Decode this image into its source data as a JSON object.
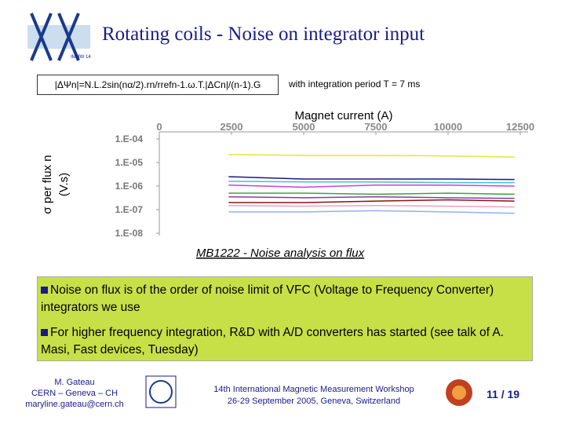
{
  "header": {
    "title": "Rotating coils - Noise on integrator input",
    "logo_text": "IMMW 14"
  },
  "formula": "|ΔΨn|=N.L.2sin(nα/2).rn/rrefn-1.ω.T.|ΔCn|/(n-1).G",
  "period_note": "with integration period T = 7 ms",
  "chart_data": {
    "type": "line",
    "xlabel": "Magnet current (A)",
    "ylabel": [
      "σ per flux n",
      "(V.s)"
    ],
    "caption": "MB1222 - Noise analysis on flux",
    "x": [
      2400,
      5000,
      7500,
      10000,
      12300
    ],
    "xlim": [
      0,
      12500
    ],
    "xticks": [
      0,
      2500,
      5000,
      7500,
      10000,
      12500
    ],
    "ylim": [
      1e-08,
      0.0001
    ],
    "ylog": true,
    "yticks": [
      {
        "value": 0.0001,
        "label": "1.E-04"
      },
      {
        "value": 1e-05,
        "label": "1.E-05"
      },
      {
        "value": 1e-06,
        "label": "1.E-06"
      },
      {
        "value": 1e-07,
        "label": "1.E-07"
      },
      {
        "value": 1e-08,
        "label": "1.E-08"
      }
    ],
    "series": [
      {
        "color": "#e8e040",
        "values": [
          2.2e-05,
          2e-05,
          2e-05,
          1.9e-05,
          1.7e-05
        ]
      },
      {
        "color": "#1a1a80",
        "values": [
          2.5e-06,
          2e-06,
          2e-06,
          2e-06,
          1.9e-06
        ]
      },
      {
        "color": "#40c0e0",
        "values": [
          1.6e-06,
          1.5e-06,
          1.5e-06,
          1.4e-06,
          1.4e-06
        ]
      },
      {
        "color": "#d040d0",
        "values": [
          1.1e-06,
          9e-07,
          1.1e-06,
          1.1e-06,
          1e-06
        ]
      },
      {
        "color": "#40a040",
        "values": [
          5e-07,
          5e-07,
          4.5e-07,
          5e-07,
          4.5e-07
        ]
      },
      {
        "color": "#8040a0",
        "values": [
          3.5e-07,
          3.2e-07,
          3.5e-07,
          3.2e-07,
          3e-07
        ]
      },
      {
        "color": "#901010",
        "values": [
          2e-07,
          2e-07,
          2.3e-07,
          2.6e-07,
          2.3e-07
        ]
      },
      {
        "color": "#f0a0c0",
        "values": [
          1.5e-07,
          1.4e-07,
          1.5e-07,
          1.4e-07,
          1.3e-07
        ]
      },
      {
        "color": "#90b0f0",
        "values": [
          8e-08,
          8e-08,
          9e-08,
          8e-08,
          7e-08
        ]
      }
    ]
  },
  "bullets": [
    "Noise on flux is of the order of noise limit of VFC (Voltage to Frequency Converter) integrators we use",
    "For higher frequency integration, R&D with A/D converters has started (see talk of A. Masi, Fast devices, Tuesday)"
  ],
  "footer": {
    "author": [
      "M. Gateau",
      "CERN – Geneva – CH",
      "maryline.gateau@cern.ch"
    ],
    "event": [
      "14th International Magnetic Measurement Workshop",
      "26-29 September 2005, Geneva, Switzerland"
    ],
    "page": "11 / 19"
  }
}
